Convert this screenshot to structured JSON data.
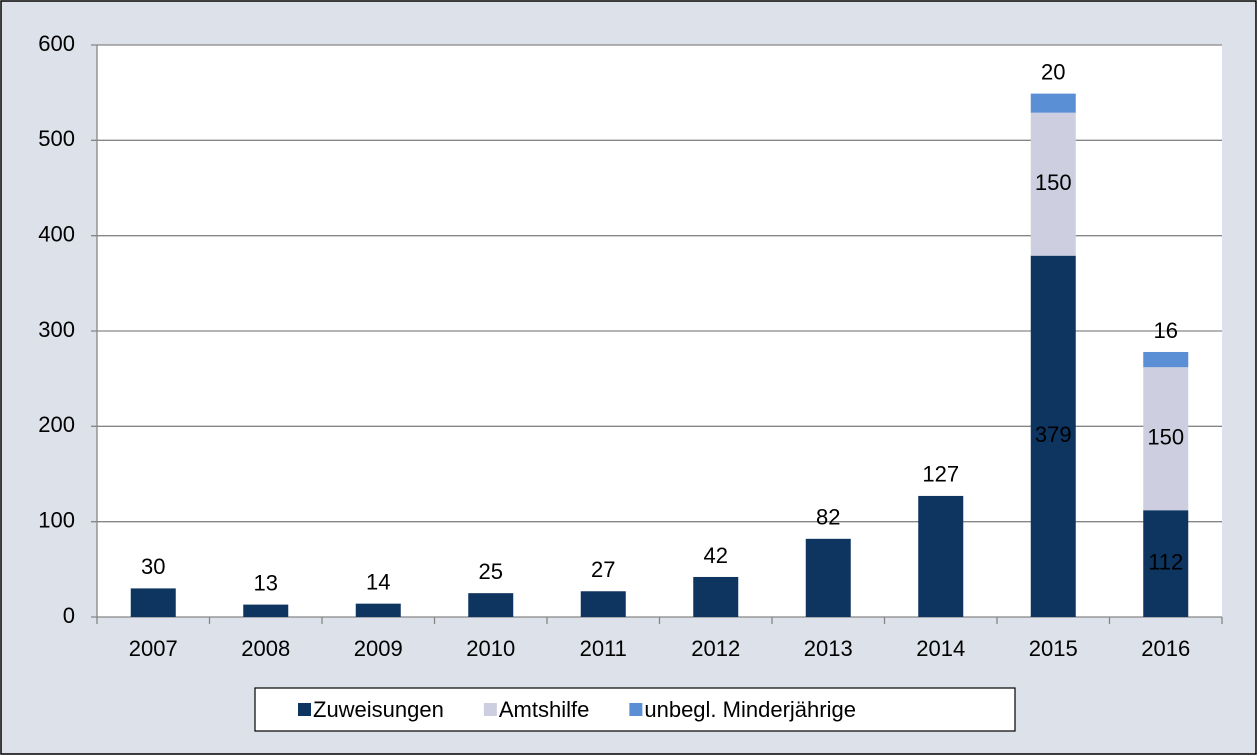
{
  "chart_data": {
    "type": "stacked-bar",
    "categories": [
      "2007",
      "2008",
      "2009",
      "2010",
      "2011",
      "2012",
      "2013",
      "2014",
      "2015",
      "2016"
    ],
    "series": [
      {
        "name": "Zuweisungen",
        "color": "#0e3460",
        "values": [
          30,
          13,
          14,
          25,
          27,
          42,
          82,
          127,
          379,
          112
        ]
      },
      {
        "name": "Amtshilfe",
        "color": "#cdcfe0",
        "values": [
          null,
          null,
          null,
          null,
          null,
          null,
          null,
          null,
          150,
          150
        ]
      },
      {
        "name": "unbegl. Minderjährige",
        "color": "#5a8fd6",
        "values": [
          null,
          null,
          null,
          null,
          null,
          null,
          null,
          null,
          20,
          16
        ]
      }
    ],
    "ylim": [
      0,
      600
    ],
    "yticks": [
      0,
      100,
      200,
      300,
      400,
      500,
      600
    ],
    "grid": true,
    "legend": "bottom"
  }
}
